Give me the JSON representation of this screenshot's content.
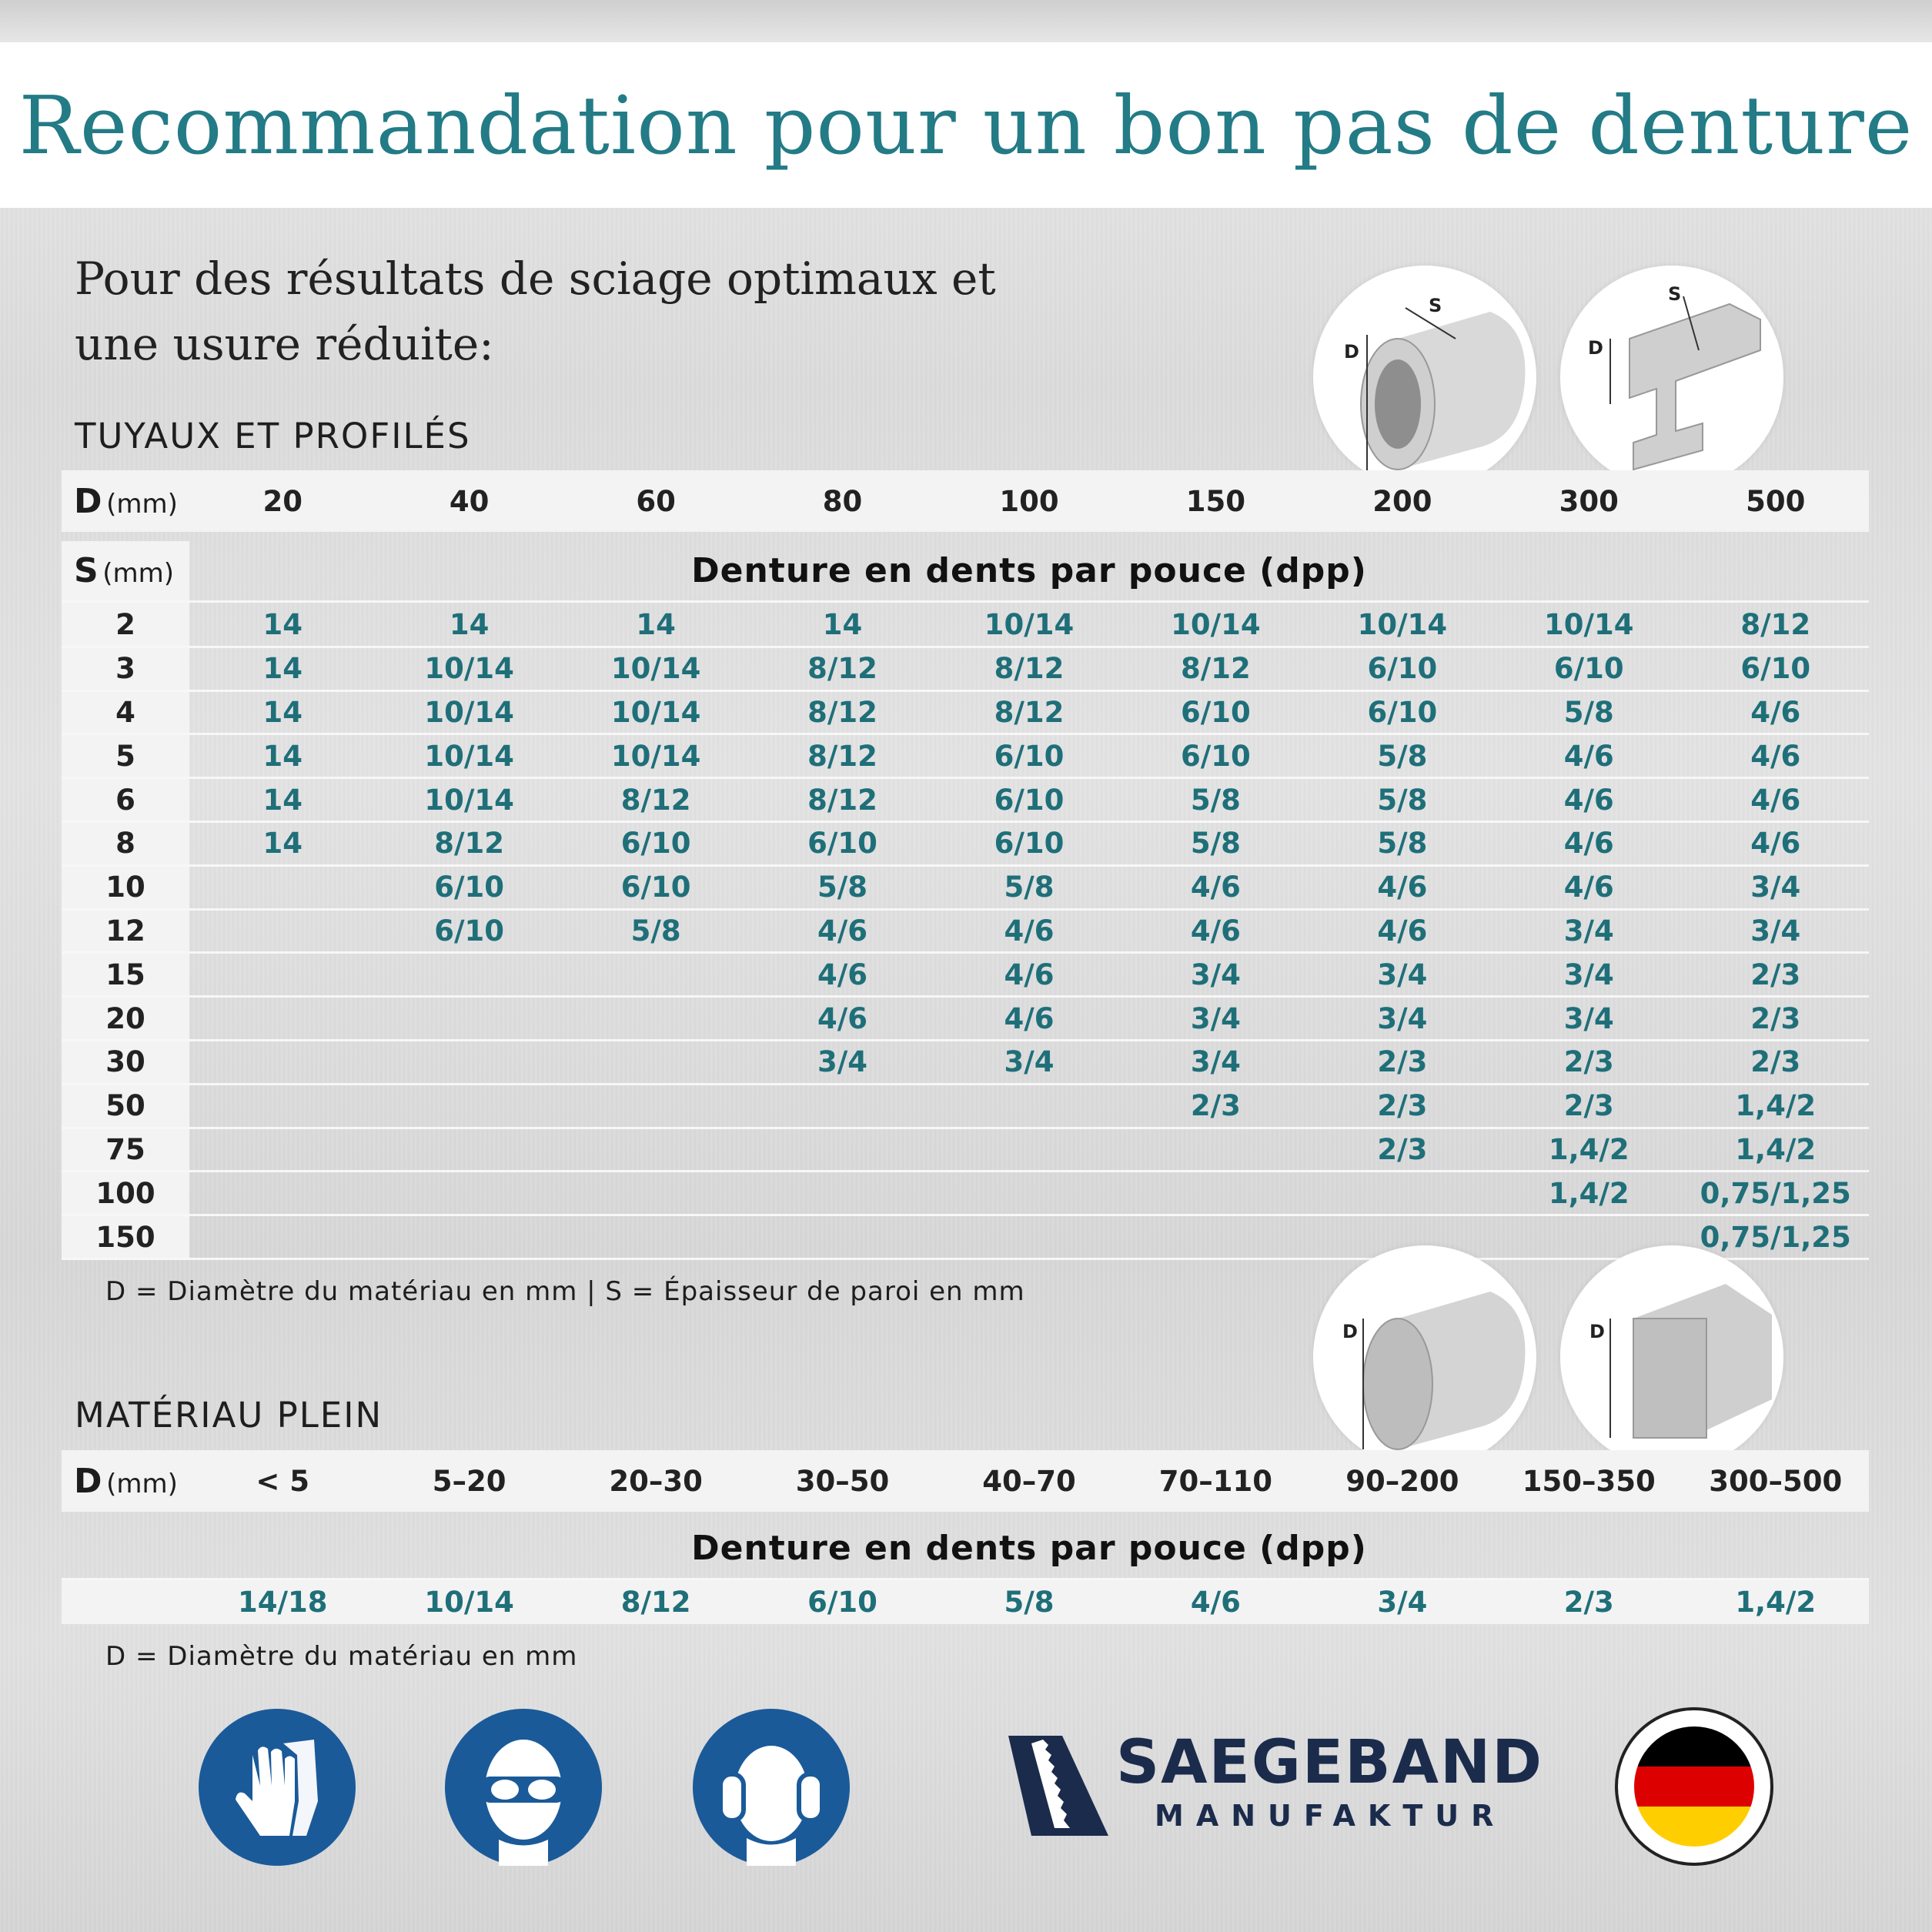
{
  "title": "Recommandation pour un bon pas de denture",
  "intro": {
    "line1": "Pour des résultats de sciage optimaux et",
    "line2": "une usure réduite:"
  },
  "tubes": {
    "section_title": "TUYAUX ET PROFILÉS",
    "d_label": "D",
    "d_unit": "(mm)",
    "s_label": "S",
    "s_unit": "(mm)",
    "d_values": [
      "20",
      "40",
      "60",
      "80",
      "100",
      "150",
      "200",
      "300",
      "500"
    ],
    "dpp_title": "Denture en dents par pouce (dpp)",
    "rows": [
      {
        "s": "2",
        "v": [
          "14",
          "14",
          "14",
          "14",
          "10/14",
          "10/14",
          "10/14",
          "10/14",
          "8/12"
        ]
      },
      {
        "s": "3",
        "v": [
          "14",
          "10/14",
          "10/14",
          "8/12",
          "8/12",
          "8/12",
          "6/10",
          "6/10",
          "6/10"
        ]
      },
      {
        "s": "4",
        "v": [
          "14",
          "10/14",
          "10/14",
          "8/12",
          "8/12",
          "6/10",
          "6/10",
          "5/8",
          "4/6"
        ]
      },
      {
        "s": "5",
        "v": [
          "14",
          "10/14",
          "10/14",
          "8/12",
          "6/10",
          "6/10",
          "5/8",
          "4/6",
          "4/6"
        ]
      },
      {
        "s": "6",
        "v": [
          "14",
          "10/14",
          "8/12",
          "8/12",
          "6/10",
          "5/8",
          "5/8",
          "4/6",
          "4/6"
        ]
      },
      {
        "s": "8",
        "v": [
          "14",
          "8/12",
          "6/10",
          "6/10",
          "6/10",
          "5/8",
          "5/8",
          "4/6",
          "4/6"
        ]
      },
      {
        "s": "10",
        "v": [
          "",
          "6/10",
          "6/10",
          "5/8",
          "5/8",
          "4/6",
          "4/6",
          "4/6",
          "3/4"
        ]
      },
      {
        "s": "12",
        "v": [
          "",
          "6/10",
          "5/8",
          "4/6",
          "4/6",
          "4/6",
          "4/6",
          "3/4",
          "3/4"
        ]
      },
      {
        "s": "15",
        "v": [
          "",
          "",
          "",
          "4/6",
          "4/6",
          "3/4",
          "3/4",
          "3/4",
          "2/3"
        ]
      },
      {
        "s": "20",
        "v": [
          "",
          "",
          "",
          "4/6",
          "4/6",
          "3/4",
          "3/4",
          "3/4",
          "2/3"
        ]
      },
      {
        "s": "30",
        "v": [
          "",
          "",
          "",
          "3/4",
          "3/4",
          "3/4",
          "2/3",
          "2/3",
          "2/3"
        ]
      },
      {
        "s": "50",
        "v": [
          "",
          "",
          "",
          "",
          "",
          "2/3",
          "2/3",
          "2/3",
          "1,4/2"
        ]
      },
      {
        "s": "75",
        "v": [
          "",
          "",
          "",
          "",
          "",
          "",
          "2/3",
          "1,4/2",
          "1,4/2"
        ]
      },
      {
        "s": "100",
        "v": [
          "",
          "",
          "",
          "",
          "",
          "",
          "",
          "1,4/2",
          "0,75/1,25"
        ]
      },
      {
        "s": "150",
        "v": [
          "",
          "",
          "",
          "",
          "",
          "",
          "",
          "",
          "0,75/1,25"
        ]
      }
    ],
    "note": "D = Diamètre du matériau en mm | S = Épaisseur de paroi en mm",
    "diagram_labels": {
      "d": "D",
      "s": "S"
    }
  },
  "solid": {
    "section_title": "MATÉRIAU PLEIN",
    "d_label": "D",
    "d_unit": "(mm)",
    "d_values": [
      "< 5",
      "5–20",
      "20–30",
      "30–50",
      "40–70",
      "70–110",
      "90–200",
      "150–350",
      "300–500"
    ],
    "dpp_title": "Denture en dents par pouce (dpp)",
    "values": [
      "14/18",
      "10/14",
      "8/12",
      "6/10",
      "5/8",
      "4/6",
      "3/4",
      "2/3",
      "1,4/2"
    ],
    "note": "D = Diamètre du matériau en mm",
    "diagram_labels": {
      "d": "D"
    }
  },
  "footer": {
    "icons": [
      "gloves-icon",
      "goggles-icon",
      "ear-protection-icon"
    ],
    "brand_name": "SAEGEBAND",
    "brand_sub": "MANUFAKTUR",
    "flag_colors": [
      "#000000",
      "#dd0000",
      "#ffce00"
    ],
    "icon_color": "#1a5a99"
  }
}
